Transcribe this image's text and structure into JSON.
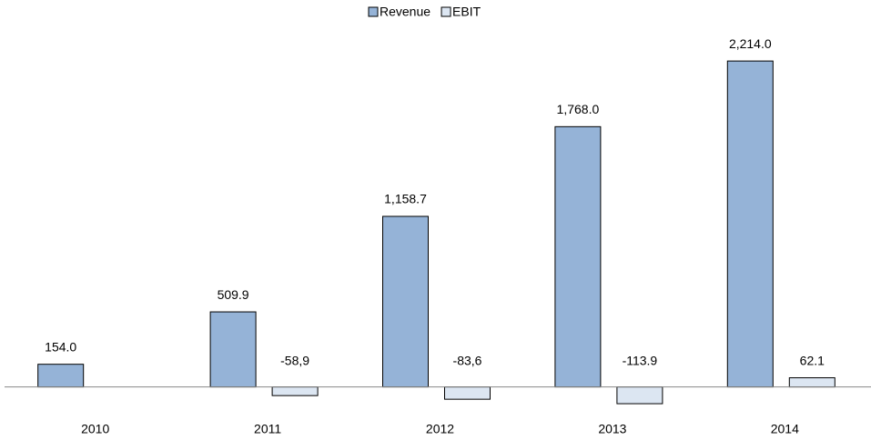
{
  "chart_data": {
    "type": "bar",
    "categories": [
      "2010",
      "2011",
      "2012",
      "2013",
      "2014"
    ],
    "series": [
      {
        "name": "Revenue",
        "color": "#95b3d7",
        "values": [
          154.0,
          509.9,
          1158.7,
          1768.0,
          2214.0
        ],
        "value_labels": [
          "154.0",
          "509.9",
          "1,158.7",
          "1,768.0",
          "2,214.0"
        ]
      },
      {
        "name": "EBIT",
        "color": "#dce6f2",
        "values": [
          null,
          -58.9,
          -83.6,
          -113.9,
          62.1
        ],
        "value_labels": [
          null,
          "-58,9",
          "-83,6",
          "-113.9",
          "62.1"
        ]
      }
    ],
    "ylim": [
      -200,
      2400
    ],
    "legend": "top"
  }
}
